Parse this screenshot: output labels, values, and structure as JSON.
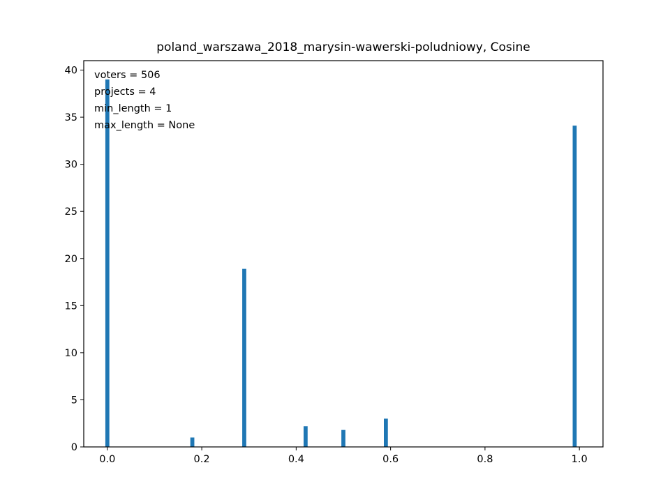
{
  "chart_data": {
    "type": "bar",
    "title": "poland_warszawa_2018_marysin-wawerski-poludniowy, Cosine",
    "xlabel": "",
    "ylabel": "",
    "xlim": [
      -0.05,
      1.05
    ],
    "ylim": [
      0,
      41
    ],
    "bin_width": 0.01,
    "x_ticks": [
      0.0,
      0.2,
      0.4,
      0.6,
      0.8,
      1.0
    ],
    "x_tick_labels": [
      "0.0",
      "0.2",
      "0.4",
      "0.6",
      "0.8",
      "1.0"
    ],
    "y_ticks": [
      0,
      5,
      10,
      15,
      20,
      25,
      30,
      35,
      40
    ],
    "y_tick_labels": [
      "0",
      "5",
      "10",
      "15",
      "20",
      "25",
      "30",
      "35",
      "40"
    ],
    "bars": [
      {
        "x": 0.0,
        "value": 39.0
      },
      {
        "x": 0.18,
        "value": 1.0
      },
      {
        "x": 0.29,
        "value": 18.9
      },
      {
        "x": 0.42,
        "value": 2.2
      },
      {
        "x": 0.5,
        "value": 1.8
      },
      {
        "x": 0.59,
        "value": 3.0
      },
      {
        "x": 0.99,
        "value": 34.1
      }
    ],
    "bar_color": "#1f77b4",
    "grid": false,
    "annotations": [
      "voters = 506",
      "projects = 4",
      "min_length = 1",
      "max_length = None"
    ]
  }
}
